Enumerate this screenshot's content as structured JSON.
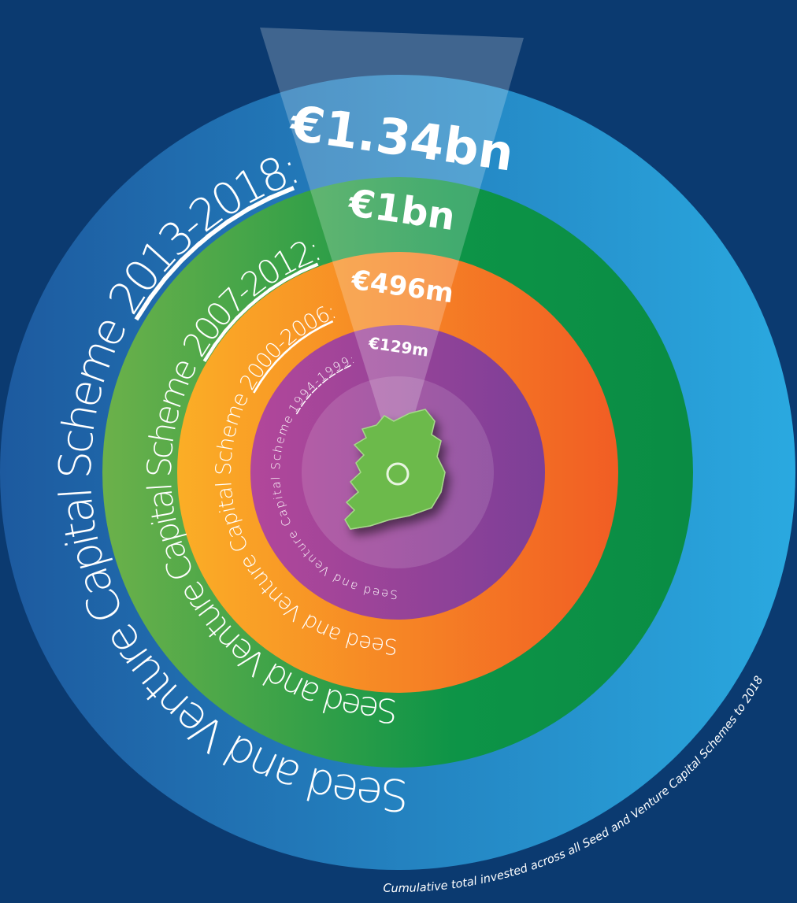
{
  "rings": [
    {
      "scheme": "Seed and Venture Capital Scheme",
      "period": "2013-2018",
      "colon": ":",
      "amount": "€1.34bn"
    },
    {
      "scheme": "Seed and Venture Capital Scheme",
      "period": "2007-2012",
      "colon": ":",
      "amount": "€1bn"
    },
    {
      "scheme": "Seed and Venture Capital Scheme",
      "period": "2000-2006",
      "colon": ":",
      "amount": "€496m"
    },
    {
      "scheme": "Seed and Venture Capital Scheme",
      "period": "1994-1999",
      "colon": ":",
      "amount": "€129m"
    }
  ],
  "footnote": "Cumulative total invested across all Seed and Venture Capital Schemes to 2018"
}
